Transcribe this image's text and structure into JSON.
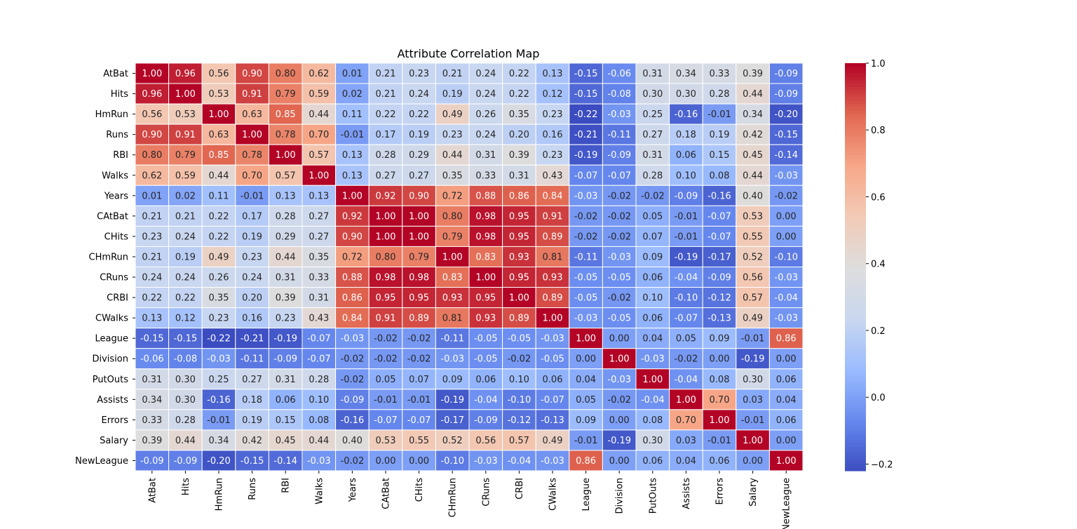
{
  "chart_data": {
    "type": "heatmap",
    "title": "Attribute Correlation Map",
    "labels": [
      "AtBat",
      "Hits",
      "HmRun",
      "Runs",
      "RBI",
      "Walks",
      "Years",
      "CAtBat",
      "CHits",
      "CHmRun",
      "CRuns",
      "CRBI",
      "CWalks",
      "League",
      "Division",
      "PutOuts",
      "Assists",
      "Errors",
      "Salary",
      "NewLeague"
    ],
    "values": [
      [
        1.0,
        0.96,
        0.56,
        0.9,
        0.8,
        0.62,
        0.01,
        0.21,
        0.23,
        0.21,
        0.24,
        0.22,
        0.13,
        -0.15,
        -0.06,
        0.31,
        0.34,
        0.33,
        0.39,
        -0.09
      ],
      [
        0.96,
        1.0,
        0.53,
        0.91,
        0.79,
        0.59,
        0.02,
        0.21,
        0.24,
        0.19,
        0.24,
        0.22,
        0.12,
        -0.15,
        -0.08,
        0.3,
        0.3,
        0.28,
        0.44,
        -0.09
      ],
      [
        0.56,
        0.53,
        1.0,
        0.63,
        0.85,
        0.44,
        0.11,
        0.22,
        0.22,
        0.49,
        0.26,
        0.35,
        0.23,
        -0.22,
        -0.03,
        0.25,
        -0.16,
        -0.01,
        0.34,
        -0.2
      ],
      [
        0.9,
        0.91,
        0.63,
        1.0,
        0.78,
        0.7,
        -0.01,
        0.17,
        0.19,
        0.23,
        0.24,
        0.2,
        0.16,
        -0.21,
        -0.11,
        0.27,
        0.18,
        0.19,
        0.42,
        -0.15
      ],
      [
        0.8,
        0.79,
        0.85,
        0.78,
        1.0,
        0.57,
        0.13,
        0.28,
        0.29,
        0.44,
        0.31,
        0.39,
        0.23,
        -0.19,
        -0.09,
        0.31,
        0.06,
        0.15,
        0.45,
        -0.14
      ],
      [
        0.62,
        0.59,
        0.44,
        0.7,
        0.57,
        1.0,
        0.13,
        0.27,
        0.27,
        0.35,
        0.33,
        0.31,
        0.43,
        -0.07,
        -0.07,
        0.28,
        0.1,
        0.08,
        0.44,
        -0.03
      ],
      [
        0.01,
        0.02,
        0.11,
        -0.01,
        0.13,
        0.13,
        1.0,
        0.92,
        0.9,
        0.72,
        0.88,
        0.86,
        0.84,
        -0.03,
        -0.02,
        -0.02,
        -0.09,
        -0.16,
        0.4,
        -0.02
      ],
      [
        0.21,
        0.21,
        0.22,
        0.17,
        0.28,
        0.27,
        0.92,
        1.0,
        1.0,
        0.8,
        0.98,
        0.95,
        0.91,
        -0.02,
        -0.02,
        0.05,
        -0.01,
        -0.07,
        0.53,
        -0.0
      ],
      [
        0.23,
        0.24,
        0.22,
        0.19,
        0.29,
        0.27,
        0.9,
        1.0,
        1.0,
        0.79,
        0.98,
        0.95,
        0.89,
        -0.02,
        -0.02,
        0.07,
        -0.01,
        -0.07,
        0.55,
        0.0
      ],
      [
        0.21,
        0.19,
        0.49,
        0.23,
        0.44,
        0.35,
        0.72,
        0.8,
        0.79,
        1.0,
        0.83,
        0.93,
        0.81,
        -0.11,
        -0.03,
        0.09,
        -0.19,
        -0.17,
        0.52,
        -0.1
      ],
      [
        0.24,
        0.24,
        0.26,
        0.24,
        0.31,
        0.33,
        0.88,
        0.98,
        0.98,
        0.83,
        1.0,
        0.95,
        0.93,
        -0.05,
        -0.05,
        0.06,
        -0.04,
        -0.09,
        0.56,
        -0.03
      ],
      [
        0.22,
        0.22,
        0.35,
        0.2,
        0.39,
        0.31,
        0.86,
        0.95,
        0.95,
        0.93,
        0.95,
        1.0,
        0.89,
        -0.05,
        -0.02,
        0.1,
        -0.1,
        -0.12,
        0.57,
        -0.04
      ],
      [
        0.13,
        0.12,
        0.23,
        0.16,
        0.23,
        0.43,
        0.84,
        0.91,
        0.89,
        0.81,
        0.93,
        0.89,
        1.0,
        -0.03,
        -0.05,
        0.06,
        -0.07,
        -0.13,
        0.49,
        -0.03
      ],
      [
        -0.15,
        -0.15,
        -0.22,
        -0.21,
        -0.19,
        -0.07,
        -0.03,
        -0.02,
        -0.02,
        -0.11,
        -0.05,
        -0.05,
        -0.03,
        1.0,
        -0.0,
        0.04,
        0.05,
        0.09,
        -0.01,
        0.86
      ],
      [
        -0.06,
        -0.08,
        -0.03,
        -0.11,
        -0.09,
        -0.07,
        -0.02,
        -0.02,
        -0.02,
        -0.03,
        -0.05,
        -0.02,
        -0.05,
        -0.0,
        1.0,
        -0.03,
        -0.02,
        -0.0,
        -0.19,
        -0.0
      ],
      [
        0.31,
        0.3,
        0.25,
        0.27,
        0.31,
        0.28,
        -0.02,
        0.05,
        0.07,
        0.09,
        0.06,
        0.1,
        0.06,
        0.04,
        -0.03,
        1.0,
        -0.04,
        0.08,
        0.3,
        0.06
      ],
      [
        0.34,
        0.3,
        -0.16,
        0.18,
        0.06,
        0.1,
        -0.09,
        -0.01,
        -0.01,
        -0.19,
        -0.04,
        -0.1,
        -0.07,
        0.05,
        -0.02,
        -0.04,
        1.0,
        0.7,
        0.03,
        0.04
      ],
      [
        0.33,
        0.28,
        -0.01,
        0.19,
        0.15,
        0.08,
        -0.16,
        -0.07,
        -0.07,
        -0.17,
        -0.09,
        -0.12,
        -0.13,
        0.09,
        -0.0,
        0.08,
        0.7,
        1.0,
        -0.01,
        0.06
      ],
      [
        0.39,
        0.44,
        0.34,
        0.42,
        0.45,
        0.44,
        0.4,
        0.53,
        0.55,
        0.52,
        0.56,
        0.57,
        0.49,
        -0.01,
        -0.19,
        0.3,
        0.03,
        -0.01,
        1.0,
        -0.0
      ],
      [
        -0.09,
        -0.09,
        -0.2,
        -0.15,
        -0.14,
        -0.03,
        -0.02,
        -0.0,
        0.0,
        -0.1,
        -0.03,
        -0.04,
        -0.03,
        0.86,
        -0.0,
        0.06,
        0.04,
        0.06,
        -0.0,
        1.0
      ]
    ],
    "vmin": -0.22,
    "vmax": 1.0,
    "colormap": "coolwarm",
    "colormap_stops": [
      "#3b4cc0",
      "#6688ee",
      "#9abbff",
      "#c9d7f0",
      "#dddddd",
      "#f2cbb7",
      "#f7a889",
      "#e26952",
      "#b40426"
    ],
    "colorbar_ticks": [
      "1.0",
      "0.8",
      "0.6",
      "0.4",
      "0.2",
      "0.0",
      "−0.2"
    ],
    "colorbar_tick_values": [
      1.0,
      0.8,
      0.6,
      0.4,
      0.2,
      0.0,
      -0.2
    ],
    "grid_lines_color": "#ffffff"
  }
}
